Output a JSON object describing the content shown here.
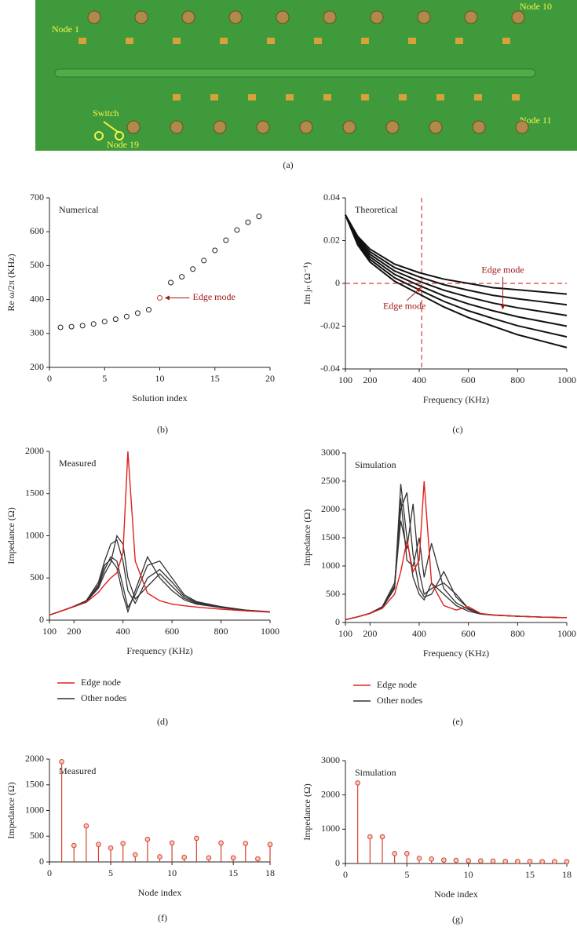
{
  "photo": {
    "labels": [
      "Node 1",
      "Node 10",
      "Node 11",
      "Node 19",
      "Switch"
    ],
    "caption": "(a)"
  },
  "chart_data": [
    {
      "type": "scatter",
      "title": "Numerical",
      "xlabel": "Solution index",
      "ylabel": "Re ω/2π (KHz)",
      "caption": "(b)",
      "xlim": [
        0,
        20
      ],
      "xticks": [
        0,
        5,
        10,
        15,
        20
      ],
      "ylim": [
        200,
        700
      ],
      "yticks": [
        200,
        300,
        400,
        500,
        600,
        700
      ],
      "x": [
        1,
        2,
        3,
        4,
        5,
        6,
        7,
        8,
        9,
        10,
        11,
        12,
        13,
        14,
        15,
        16,
        17,
        18,
        19
      ],
      "values": [
        318,
        320,
        323,
        328,
        335,
        342,
        350,
        360,
        370,
        405,
        450,
        467,
        490,
        515,
        545,
        575,
        605,
        628,
        645
      ],
      "point_colors": [
        "#222",
        "#222",
        "#222",
        "#222",
        "#222",
        "#222",
        "#222",
        "#222",
        "#222",
        "#c0392b",
        "#222",
        "#222",
        "#222",
        "#222",
        "#222",
        "#222",
        "#222",
        "#222",
        "#222"
      ],
      "annotations": [
        "Edge mode"
      ]
    },
    {
      "type": "line",
      "title": "Theoretical",
      "xlabel": "Frequency (KHz)",
      "ylabel": "Im jₙ (Ω⁻¹)",
      "caption": "(c)",
      "xlim": [
        100,
        1000
      ],
      "xticks": [
        100,
        200,
        400,
        600,
        800,
        1000
      ],
      "ylim": [
        -0.04,
        0.04
      ],
      "yticks": [
        -0.04,
        -0.02,
        0,
        0.02,
        0.04
      ],
      "vline": 410,
      "hline": 0,
      "ref_color": "#d63a3a",
      "x": [
        100,
        150,
        200,
        300,
        400,
        500,
        600,
        700,
        800,
        900,
        1000
      ],
      "series": [
        {
          "color": "#111",
          "values": [
            0.032,
            0.022,
            0.016,
            0.009,
            0.005,
            0.002,
            0.0,
            -0.002,
            -0.003,
            -0.004,
            -0.005
          ]
        },
        {
          "color": "#111",
          "values": [
            0.032,
            0.0212,
            0.0148,
            0.0074,
            0.003,
            -0.0006,
            -0.0032,
            -0.0056,
            -0.0072,
            -0.0086,
            -0.01
          ]
        },
        {
          "color": "#111",
          "values": [
            0.032,
            0.0204,
            0.0136,
            0.0058,
            0.001,
            -0.0032,
            -0.0064,
            -0.0092,
            -0.0114,
            -0.0132,
            -0.015
          ]
        },
        {
          "color": "#111",
          "values": [
            0.032,
            0.0196,
            0.0124,
            0.0042,
            -0.001,
            -0.0058,
            -0.0096,
            -0.0128,
            -0.0156,
            -0.0178,
            -0.02
          ]
        },
        {
          "color": "#111",
          "values": [
            0.032,
            0.0188,
            0.0112,
            0.0026,
            -0.003,
            -0.0084,
            -0.0128,
            -0.0164,
            -0.0198,
            -0.0224,
            -0.025
          ]
        },
        {
          "color": "#111",
          "values": [
            0.032,
            0.018,
            0.01,
            0.001,
            -0.005,
            -0.011,
            -0.016,
            -0.02,
            -0.024,
            -0.027,
            -0.03
          ]
        }
      ],
      "annotations": [
        "Edge mode",
        "Edge mode"
      ]
    },
    {
      "type": "line",
      "title": "Measured",
      "xlabel": "Frequency (KHz)",
      "ylabel": "Impedance (Ω)",
      "caption": "(d)",
      "xlim": [
        100,
        1000
      ],
      "xticks": [
        100,
        200,
        400,
        600,
        800,
        1000
      ],
      "ylim": [
        0,
        2000
      ],
      "yticks": [
        0,
        500,
        1000,
        1500,
        2000
      ],
      "x": [
        100,
        150,
        200,
        250,
        300,
        325,
        350,
        375,
        400,
        420,
        450,
        500,
        550,
        600,
        650,
        700,
        800,
        900,
        1000
      ],
      "series": [
        {
          "name": "Edge node",
          "color": "#e02020",
          "values": [
            60,
            110,
            160,
            210,
            330,
            420,
            500,
            560,
            800,
            2000,
            700,
            320,
            230,
            190,
            170,
            155,
            130,
            110,
            95
          ]
        },
        {
          "name": "Other nodes",
          "color": "#333",
          "values": [
            [
              60,
              110,
              160,
              220,
              400,
              600,
              750,
              700,
              400,
              150,
              300,
              650,
              700,
              500,
              300,
              220,
              160,
              120,
              100
            ],
            [
              60,
              110,
              165,
              230,
              450,
              700,
              900,
              950,
              700,
              350,
              200,
              500,
              600,
              450,
              280,
              210,
              155,
              118,
              98
            ],
            [
              60,
              110,
              160,
              215,
              380,
              550,
              680,
              1000,
              900,
              500,
              250,
              400,
              550,
              400,
              260,
              200,
              150,
              115,
              96
            ],
            [
              60,
              110,
              160,
              220,
              420,
              650,
              720,
              620,
              300,
              100,
              350,
              750,
              500,
              350,
              240,
              190,
              148,
              113,
              95
            ]
          ]
        }
      ]
    },
    {
      "type": "line",
      "title": "Simulation",
      "xlabel": "Frequency (KHz)",
      "ylabel": "Impedance (Ω)",
      "caption": "(e)",
      "xlim": [
        100,
        1000
      ],
      "xticks": [
        100,
        200,
        400,
        600,
        800,
        1000
      ],
      "ylim": [
        0,
        3000
      ],
      "yticks": [
        0,
        500,
        1000,
        1500,
        2000,
        2500,
        3000
      ],
      "x": [
        100,
        150,
        200,
        250,
        300,
        325,
        350,
        375,
        400,
        420,
        450,
        500,
        550,
        600,
        650,
        700,
        800,
        900,
        1000
      ],
      "series": [
        {
          "name": "Edge node",
          "color": "#e02020",
          "values": [
            50,
            100,
            160,
            250,
            500,
            900,
            1450,
            900,
            1100,
            2500,
            700,
            300,
            220,
            280,
            160,
            130,
            110,
            95,
            85
          ]
        },
        {
          "name": "Other nodes",
          "color": "#333",
          "values": [
            [
              50,
              100,
              160,
              260,
              600,
              2450,
              1500,
              800,
              500,
              400,
              700,
              500,
              300,
              200,
              150,
              130,
              110,
              95,
              85
            ],
            [
              50,
              100,
              165,
              280,
              700,
              2000,
              2300,
              1200,
              600,
              450,
              500,
              900,
              450,
              250,
              160,
              135,
              112,
              96,
              86
            ],
            [
              50,
              100,
              160,
              270,
              650,
              1800,
              1300,
              2100,
              900,
              500,
              600,
              700,
              500,
              250,
              150,
              130,
              110,
              95,
              85
            ],
            [
              50,
              100,
              162,
              275,
              620,
              2200,
              1100,
              1000,
              1500,
              800,
              1400,
              600,
              350,
              230,
              155,
              132,
              111,
              95,
              85
            ]
          ]
        }
      ]
    },
    {
      "type": "stem",
      "title": "Measured",
      "xlabel": "Node index",
      "ylabel": "Impedance (Ω)",
      "caption": "(f)",
      "color": "#d9402a",
      "xlim": [
        0,
        18
      ],
      "xticks": [
        0,
        5,
        10,
        15,
        18
      ],
      "ylim": [
        0,
        2000
      ],
      "yticks": [
        0,
        500,
        1000,
        1500,
        2000
      ],
      "x": [
        1,
        2,
        3,
        4,
        5,
        6,
        7,
        8,
        9,
        10,
        11,
        12,
        13,
        14,
        15,
        16,
        17,
        18
      ],
      "values": [
        1950,
        320,
        700,
        340,
        270,
        360,
        140,
        440,
        100,
        370,
        90,
        460,
        80,
        370,
        80,
        360,
        60,
        340
      ]
    },
    {
      "type": "stem",
      "title": "Simulation",
      "xlabel": "Node index",
      "ylabel": "Impedance (Ω)",
      "caption": "(g)",
      "color": "#d9402a",
      "xlim": [
        0,
        18
      ],
      "xticks": [
        0,
        5,
        10,
        15,
        18
      ],
      "ylim": [
        0,
        3000
      ],
      "yticks": [
        0,
        1000,
        2000,
        3000
      ],
      "x": [
        1,
        2,
        3,
        4,
        5,
        6,
        7,
        8,
        9,
        10,
        11,
        12,
        13,
        14,
        15,
        16,
        17,
        18
      ],
      "values": [
        2350,
        780,
        780,
        290,
        290,
        150,
        130,
        100,
        90,
        80,
        75,
        70,
        65,
        60,
        60,
        55,
        55,
        55
      ]
    }
  ]
}
